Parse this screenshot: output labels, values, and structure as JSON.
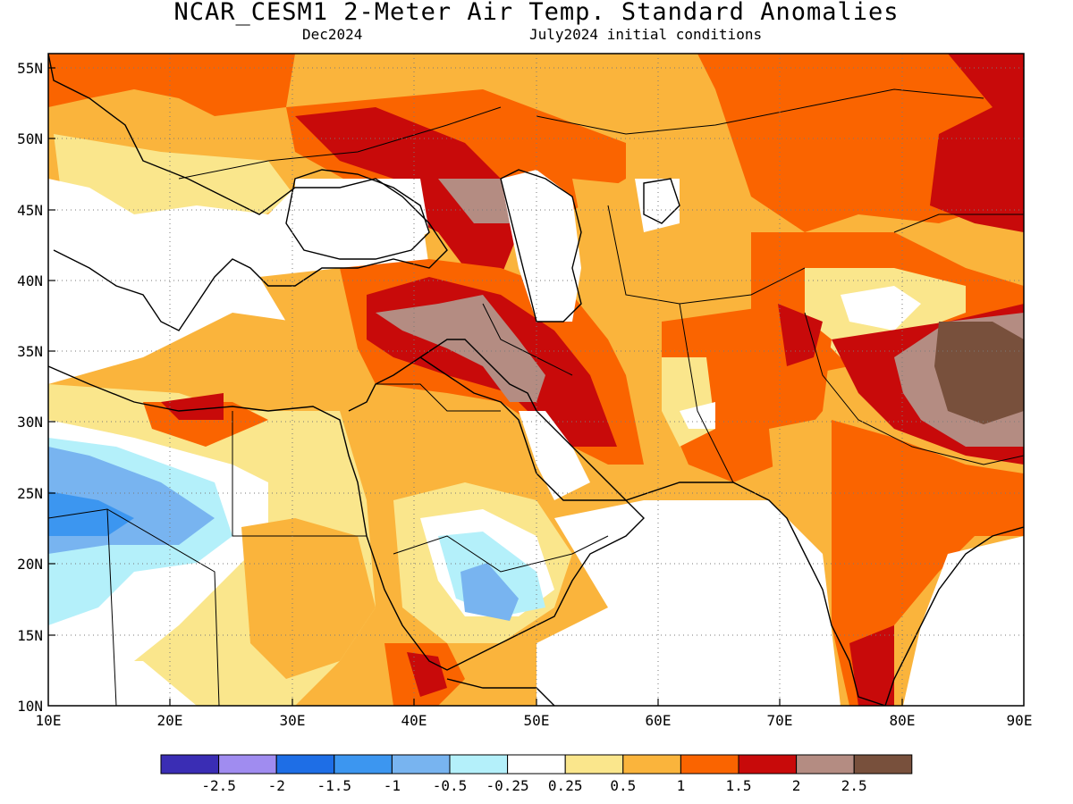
{
  "header": {
    "title": "NCAR_CESM1 2-Meter Air Temp. Standard Anomalies",
    "valid_month": "Dec2024",
    "initial_conditions": "July2024 initial conditions"
  },
  "map": {
    "lon_range": [
      10,
      90
    ],
    "lat_range": [
      10,
      56
    ],
    "lat_ticks": [
      "55N",
      "50N",
      "45N",
      "40N",
      "35N",
      "30N",
      "25N",
      "20N",
      "15N",
      "10N"
    ],
    "lon_ticks": [
      "10E",
      "20E",
      "30E",
      "40E",
      "50E",
      "60E",
      "70E",
      "80E",
      "90E"
    ],
    "gridlines": "dotted"
  },
  "colorbar": {
    "colors": [
      "#3a2db4",
      "#a08cf0",
      "#1e6ee6",
      "#3c96f0",
      "#78b4f0",
      "#b4f0fa",
      "#ffffff",
      "#fae68c",
      "#fab43c",
      "#fa6400",
      "#c80a0a",
      "#b48c82",
      "#78503c"
    ],
    "labels": [
      "-2.5",
      "-2",
      "-1.5",
      "-1",
      "-0.5",
      "-0.25",
      "0.25",
      "0.5",
      "1",
      "1.5",
      "2",
      "2.5"
    ]
  },
  "chart_data": {
    "type": "heatmap",
    "title": "NCAR_CESM1 2-Meter Air Temp. Standard Anomalies",
    "x_range": [
      10,
      90
    ],
    "y_range": [
      10,
      56
    ],
    "levels": [
      -2.5,
      -2,
      -1.5,
      -1,
      -0.5,
      -0.25,
      0.25,
      0.5,
      1,
      1.5,
      2,
      2.5
    ],
    "notable_regions": [
      {
        "region": "Tibetan Plateau (86-90E, 31-35N)",
        "anomaly": ">2.5"
      },
      {
        "region": "Caucasus / Caspian (44-48E, 44-46N)",
        "anomaly": "2-2.5"
      },
      {
        "region": "Iraq / W Iran (44-47E, 33-37N)",
        "anomaly": "2-2.5"
      },
      {
        "region": "Central Sahara (10-24E, 17-25N)",
        "anomaly": "-1 to -1.5"
      },
      {
        "region": "Yemen / S Arabia (44-49E, 16-19N)",
        "anomaly": "-0.5 to -1"
      },
      {
        "region": "Southern India (77-81E, 10-15N)",
        "anomaly": "1.5-2"
      }
    ]
  }
}
